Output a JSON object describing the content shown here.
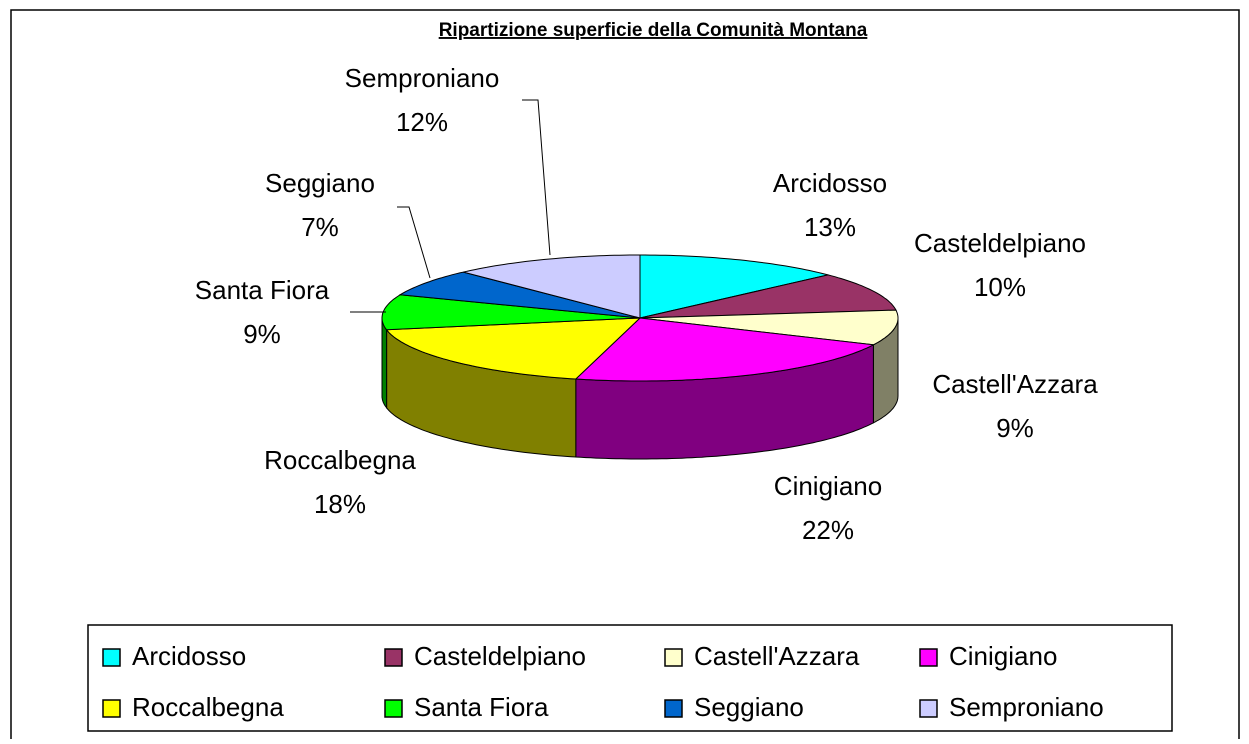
{
  "chart_data": {
    "type": "pie3d",
    "title": "Ripartizione superficie della Comunità Montana",
    "categories": [
      "Arcidosso",
      "Casteldelpiano",
      "Castell'Azzara",
      "Cinigiano",
      "Roccalbegna",
      "Santa Fiora",
      "Seggiano",
      "Semproniano"
    ],
    "values": [
      13,
      10,
      9,
      22,
      18,
      9,
      7,
      12
    ],
    "value_labels": [
      "13%",
      "10%",
      "9%",
      "22%",
      "18%",
      "9%",
      "7%",
      "12%"
    ],
    "colors": [
      "#00ffff",
      "#993366",
      "#ffffcc",
      "#ff00ff",
      "#ffff00",
      "#00ff00",
      "#0066cc",
      "#ccccff"
    ],
    "legend": "bottom"
  }
}
